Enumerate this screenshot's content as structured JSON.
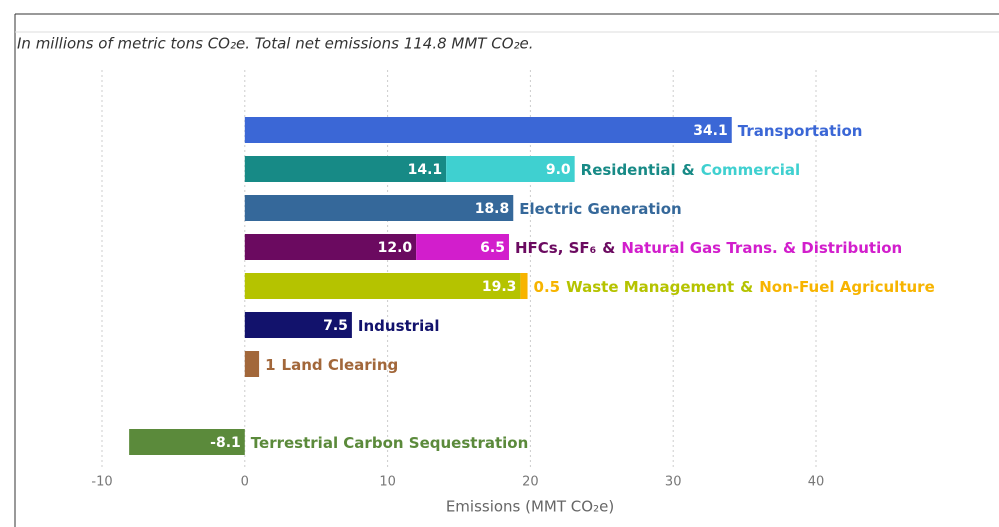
{
  "chart_data": {
    "type": "stacked-bar",
    "orientation": "horizontal",
    "title": "In millions of metric tons CO₂e.  Total net emissions 114.8 MMT CO₂e.",
    "xlabel": "Emissions (MMT CO₂e)",
    "xlim": [
      -10,
      40
    ],
    "xticks": [
      -10,
      0,
      10,
      20,
      30,
      40
    ],
    "grid": true,
    "rows": [
      {
        "segments": [
          {
            "value": 34.1,
            "color": "#3b67d6"
          }
        ],
        "label": [
          {
            "text": "Transportation",
            "color": "#3b67d6"
          }
        ]
      },
      {
        "segments": [
          {
            "value": 14.1,
            "color": "#178a86"
          },
          {
            "value": 9.0,
            "value_label": "9.0",
            "color": "#3fd0d0"
          }
        ],
        "label": [
          {
            "text": "Residential",
            "color": "#178a86"
          },
          {
            "text": "&",
            "color": "#178a86"
          },
          {
            "text": "Commercial",
            "color": "#3fd0d0"
          }
        ]
      },
      {
        "segments": [
          {
            "value": 18.8,
            "color": "#35689a"
          }
        ],
        "label": [
          {
            "text": "Electric Generation",
            "color": "#35689a"
          }
        ]
      },
      {
        "segments": [
          {
            "value": 12.0,
            "value_label": "12.0",
            "color": "#6b0a60"
          },
          {
            "value": 6.5,
            "color": "#d21ecc"
          }
        ],
        "label": [
          {
            "text": "HFCs, SF₆",
            "color": "#6b0a60"
          },
          {
            "text": "&",
            "color": "#6b0a60"
          },
          {
            "text": "Natural Gas Trans. & Distribution",
            "color": "#d21ecc"
          }
        ]
      },
      {
        "segments": [
          {
            "value": 19.3,
            "color": "#b5c300"
          },
          {
            "value": 0.5,
            "color": "#f7b400"
          }
        ],
        "label": [
          {
            "text": "Waste Management",
            "color": "#b5c300"
          },
          {
            "text": "&",
            "color": "#b5c300"
          },
          {
            "text": "Non-Fuel Agriculture",
            "color": "#f7b400"
          }
        ]
      },
      {
        "segments": [
          {
            "value": 7.5,
            "color": "#12126c"
          }
        ],
        "label": [
          {
            "text": "Industrial",
            "color": "#12126c"
          }
        ]
      },
      {
        "segments": [
          {
            "value": 1,
            "color": "#a2673a"
          }
        ],
        "label": [
          {
            "text": "Land Clearing",
            "color": "#a2673a"
          }
        ]
      },
      null,
      {
        "segments": [
          {
            "value": -8.1,
            "color": "#5b8a3b"
          }
        ],
        "label": [
          {
            "text": "Terrestrial Carbon Sequestration",
            "color": "#5b8a3b"
          }
        ]
      }
    ]
  }
}
